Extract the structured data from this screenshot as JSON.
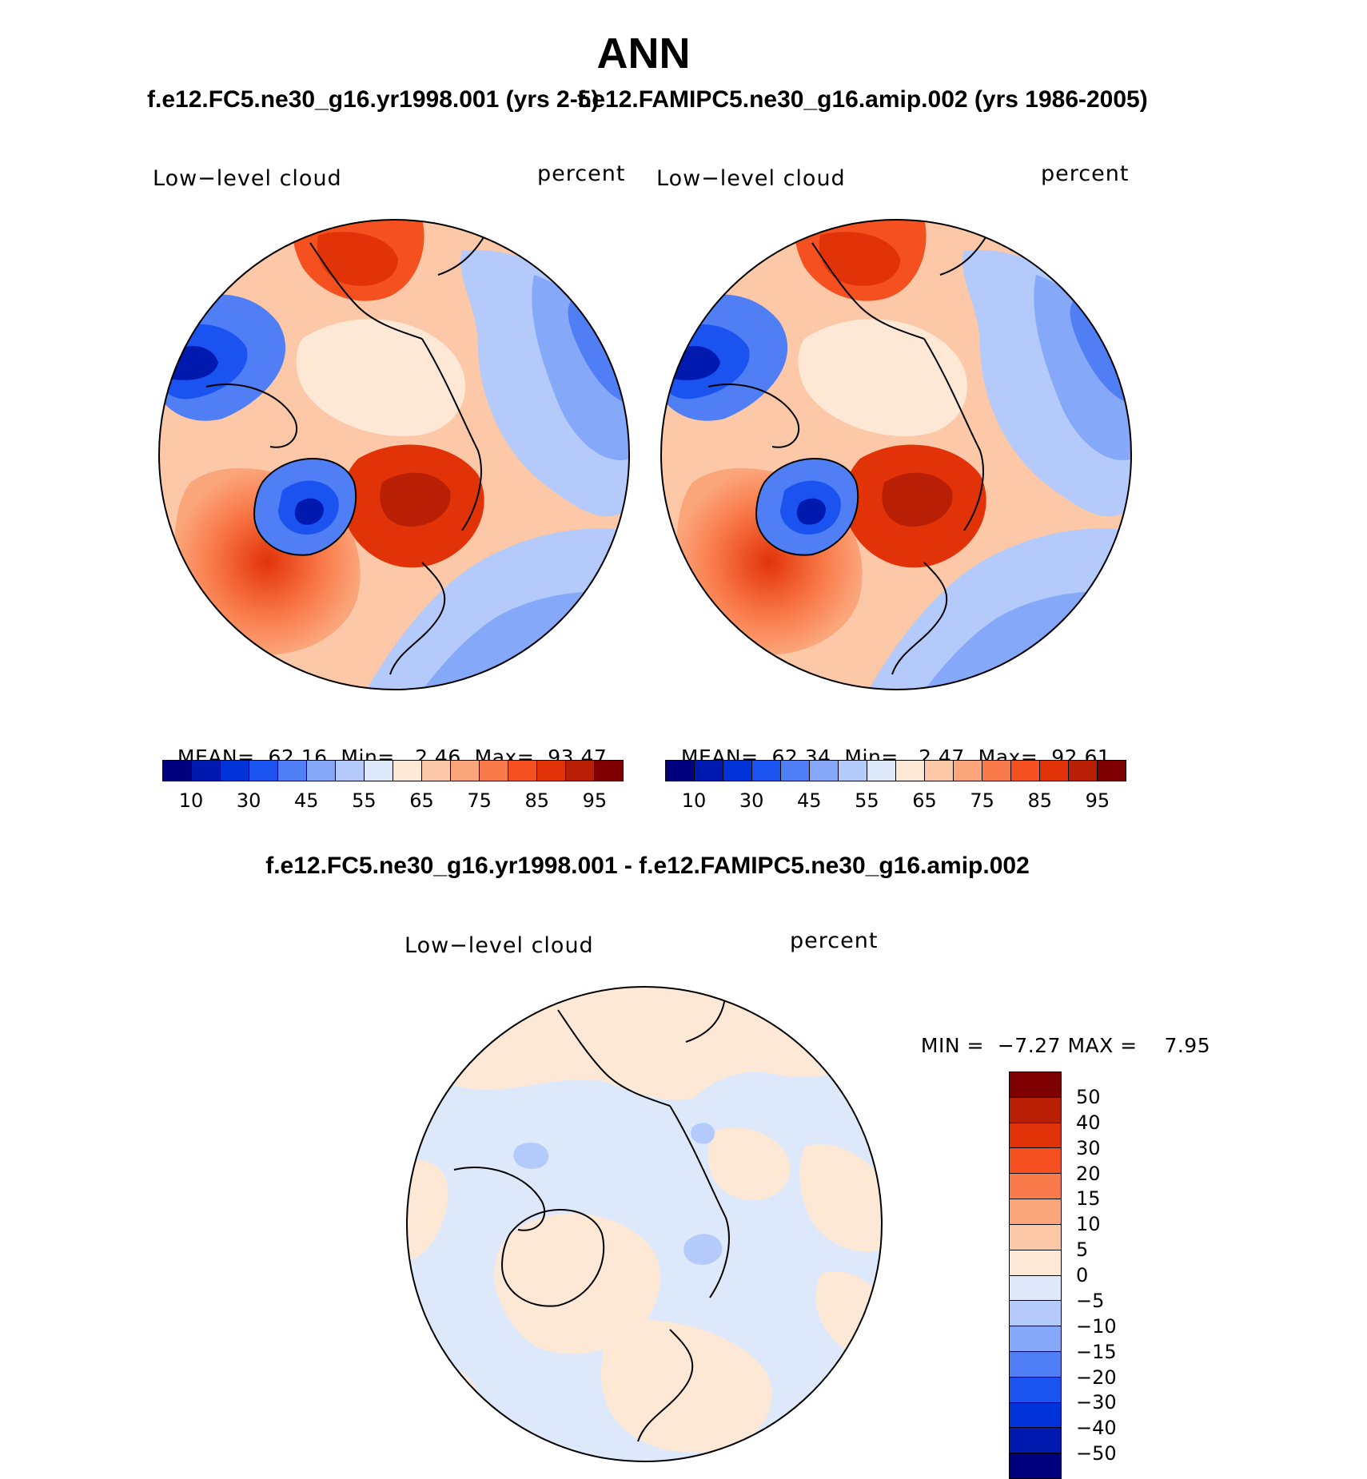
{
  "title": "ANN",
  "panels": {
    "case1": {
      "case_title": "f.e12.FC5.ne30_g16.yr1998.001 (yrs 2-5)",
      "variable_label": "Low−level cloud",
      "units_label": "percent",
      "mean_label": "MEAN=",
      "mean_value": "62.16",
      "min_label": "Min=",
      "min_value": "2.46",
      "max_label": "Max=",
      "max_value": "93.47"
    },
    "case2": {
      "case_title": "f.e12.FAMIPC5.ne30_g16.amip.002 (yrs 1986-2005)",
      "variable_label": "Low−level cloud",
      "units_label": "percent",
      "mean_label": "MEAN=",
      "mean_value": "62.34",
      "min_label": "Min=",
      "min_value": "2.47",
      "max_label": "Max=",
      "max_value": "92.61"
    },
    "difference": {
      "case_title": "f.e12.FC5.ne30_g16.yr1998.001 - f.e12.FAMIPC5.ne30_g16.amip.002",
      "variable_label": "Low−level cloud",
      "units_label": "percent",
      "min_label": "MIN =",
      "min_value": "−7.27",
      "max_label": "MAX =",
      "max_value": "7.95"
    }
  },
  "colorbar_abs": {
    "tick_labels": [
      "10",
      "30",
      "45",
      "55",
      "65",
      "75",
      "85",
      "95"
    ],
    "colors": [
      "#00007f",
      "#001ab0",
      "#0033d8",
      "#1a53f0",
      "#4f7ef5",
      "#85a8f8",
      "#b3cafa",
      "#dde9fb",
      "#fde8d6",
      "#fcc8a8",
      "#fba57a",
      "#f97a4a",
      "#f5501f",
      "#e23308",
      "#b81f05",
      "#7f0000"
    ]
  },
  "colorbar_diff": {
    "tick_labels": [
      "50",
      "40",
      "30",
      "20",
      "15",
      "10",
      "5",
      "0",
      "−5",
      "−10",
      "−15",
      "−20",
      "−30",
      "−40",
      "−50"
    ],
    "colors": [
      "#7f0000",
      "#b81f05",
      "#e23308",
      "#f5501f",
      "#f97a4a",
      "#fba57a",
      "#fcc8a8",
      "#fde8d6",
      "#dde9fb",
      "#b3cafa",
      "#85a8f8",
      "#4f7ef5",
      "#1a53f0",
      "#0033d8",
      "#001ab0",
      "#00007f"
    ]
  },
  "map": {
    "projection": "north-polar-stereographic",
    "field": "Low-level cloud, annual mean",
    "difference_pattern": "mostly within ±5 percent"
  }
}
